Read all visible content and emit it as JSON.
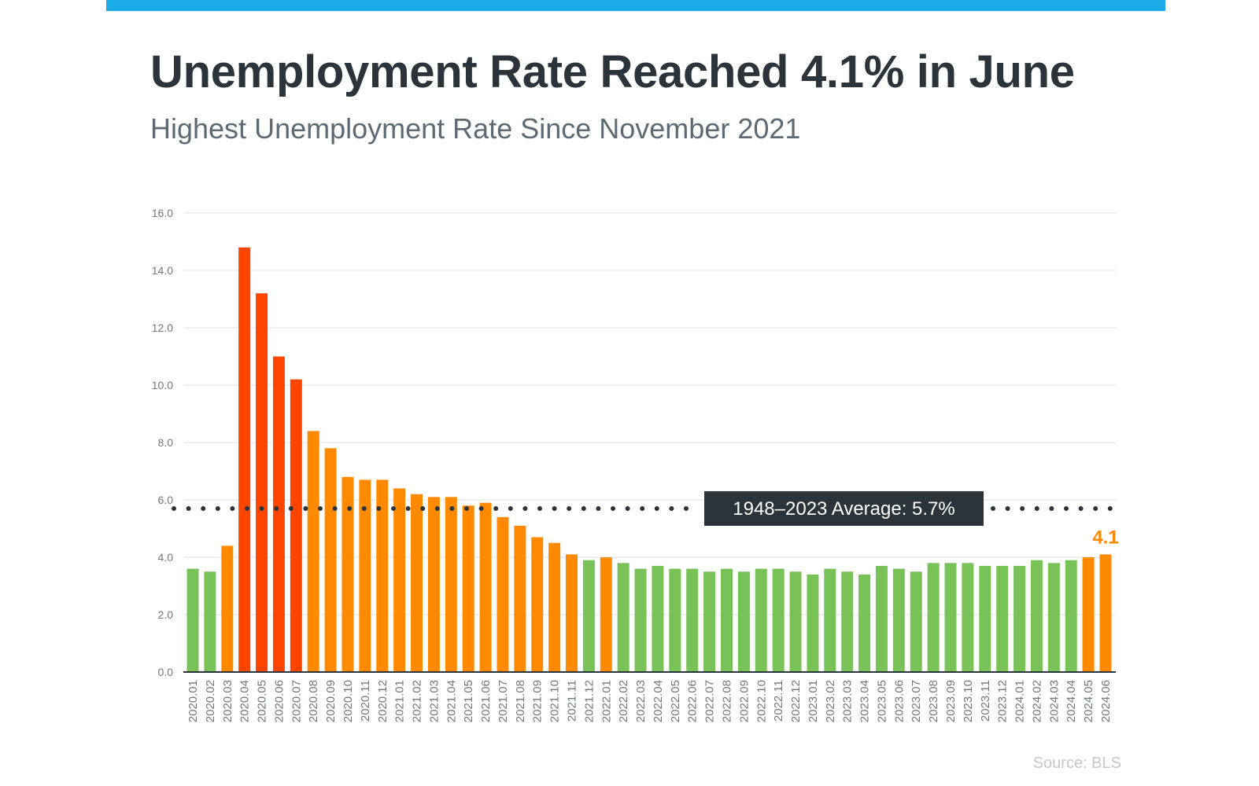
{
  "header": {
    "title": "Unemployment Rate Reached 4.1% in June",
    "subtitle": "Highest Unemployment Rate Since November 2021"
  },
  "source": "Source: BLS",
  "colors": {
    "top_bar": "#1aabe8",
    "green": "#78c257",
    "orange": "#ff8a00",
    "red": "#ff4500",
    "avg_box": "#2b333b",
    "dots": "#2b333b"
  },
  "chart_data": {
    "type": "bar",
    "title": "Unemployment Rate Reached 4.1% in June",
    "subtitle": "Highest Unemployment Rate Since November 2021",
    "ylim": [
      0,
      16
    ],
    "yticks": [
      "0.0",
      "2.0",
      "4.0",
      "6.0",
      "8.0",
      "10.0",
      "12.0",
      "14.0",
      "16.0"
    ],
    "grid": true,
    "categories": [
      "2020.01",
      "2020.02",
      "2020.03",
      "2020.04",
      "2020.05",
      "2020.06",
      "2020.07",
      "2020.08",
      "2020.09",
      "2020.10",
      "2020.11",
      "2020.12",
      "2021.01",
      "2021.02",
      "2021.03",
      "2021.04",
      "2021.05",
      "2021.06",
      "2021.07",
      "2021.08",
      "2021.09",
      "2021.10",
      "2021.11",
      "2021.12",
      "2022.01",
      "2022.02",
      "2022.03",
      "2022.04",
      "2022.05",
      "2022.06",
      "2022.07",
      "2022.08",
      "2022.09",
      "2022.10",
      "2022.11",
      "2022.12",
      "2023.01",
      "2023.02",
      "2023.03",
      "2023.04",
      "2023.05",
      "2023.06",
      "2023.07",
      "2023.08",
      "2023.09",
      "2023.10",
      "2023.11",
      "2023.12",
      "2024.01",
      "2024.02",
      "2024.03",
      "2024.04",
      "2024.05",
      "2024.06"
    ],
    "values": [
      3.6,
      3.5,
      4.4,
      14.8,
      13.2,
      11.0,
      10.2,
      8.4,
      7.8,
      6.8,
      6.7,
      6.7,
      6.4,
      6.2,
      6.1,
      6.1,
      5.8,
      5.9,
      5.4,
      5.1,
      4.7,
      4.5,
      4.1,
      3.9,
      4.0,
      3.8,
      3.6,
      3.7,
      3.6,
      3.6,
      3.5,
      3.6,
      3.5,
      3.6,
      3.6,
      3.5,
      3.4,
      3.6,
      3.5,
      3.4,
      3.7,
      3.6,
      3.5,
      3.8,
      3.8,
      3.8,
      3.7,
      3.7,
      3.7,
      3.9,
      3.8,
      3.9,
      4.0,
      4.1
    ],
    "bar_colors": [
      "green",
      "green",
      "orange",
      "red",
      "red",
      "red",
      "red",
      "orange",
      "orange",
      "orange",
      "orange",
      "orange",
      "orange",
      "orange",
      "orange",
      "orange",
      "orange",
      "orange",
      "orange",
      "orange",
      "orange",
      "orange",
      "orange",
      "green",
      "orange",
      "green",
      "green",
      "green",
      "green",
      "green",
      "green",
      "green",
      "green",
      "green",
      "green",
      "green",
      "green",
      "green",
      "green",
      "green",
      "green",
      "green",
      "green",
      "green",
      "green",
      "green",
      "green",
      "green",
      "green",
      "green",
      "green",
      "green",
      "orange",
      "orange"
    ],
    "average": {
      "value": 5.7,
      "label": "1948–2023 Average: 5.7%"
    },
    "last_value_label": "4.1"
  }
}
